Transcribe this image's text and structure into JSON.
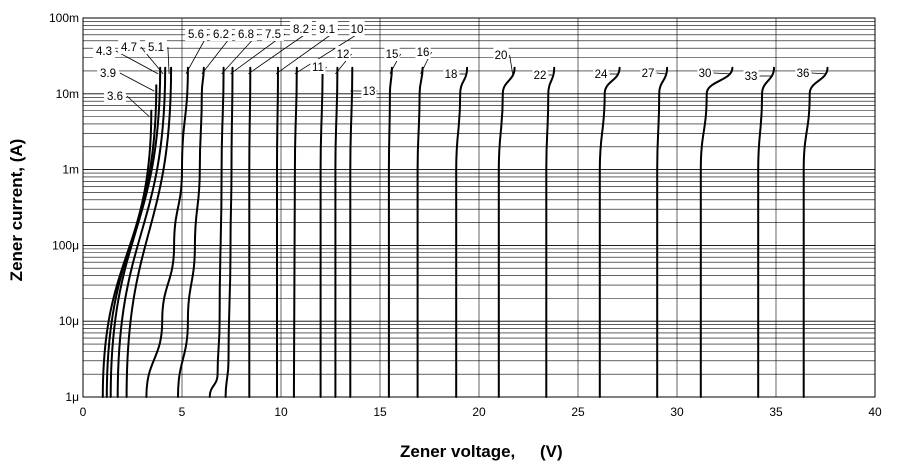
{
  "chart_data": {
    "type": "line",
    "title": "",
    "xlabel": "Zener voltage, (V)",
    "xlabel_main": "Zener voltage,",
    "xlabel_unit": "(V)",
    "ylabel": "Zener current, (A)",
    "x_scale": "linear",
    "y_scale": "log",
    "xlim": [
      0,
      40
    ],
    "ylim": [
      1e-06,
      0.1
    ],
    "grid": true,
    "legend": "none",
    "line_color": "#000000",
    "x_ticks": [
      {
        "value": 0,
        "label": "0"
      },
      {
        "value": 5,
        "label": "5"
      },
      {
        "value": 10,
        "label": "10"
      },
      {
        "value": 15,
        "label": "15"
      },
      {
        "value": 20,
        "label": "20"
      },
      {
        "value": 25,
        "label": "25"
      },
      {
        "value": 30,
        "label": "30"
      },
      {
        "value": 35,
        "label": "35"
      },
      {
        "value": 40,
        "label": "40"
      }
    ],
    "y_ticks": [
      {
        "value": 1e-06,
        "label": "1μ"
      },
      {
        "value": 1e-05,
        "label": "10μ"
      },
      {
        "value": 0.0001,
        "label": "100μ"
      },
      {
        "value": 0.001,
        "label": "1m"
      },
      {
        "value": 0.01,
        "label": "10m"
      },
      {
        "value": 0.1,
        "label": "100m"
      }
    ],
    "series": [
      {
        "name": "3.6",
        "x": [
          1.0,
          3.45
        ],
        "y": [
          1e-06,
          0.006
        ]
      },
      {
        "name": "3.9",
        "x": [
          1.2,
          3.7
        ],
        "y": [
          1e-06,
          0.013
        ]
      },
      {
        "name": "4.3",
        "x": [
          1.4,
          3.9
        ],
        "y": [
          1e-06,
          0.022
        ]
      },
      {
        "name": "4.7",
        "x": [
          1.75,
          4.15
        ],
        "y": [
          1e-06,
          0.022
        ]
      },
      {
        "name": "5.1",
        "x": [
          2.2,
          4.45
        ],
        "y": [
          1e-06,
          0.022
        ]
      },
      {
        "name": "5.6",
        "x": [
          3.2,
          4.0,
          4.6,
          5.0,
          5.3
        ],
        "y": [
          1e-06,
          1e-05,
          0.0001,
          0.001,
          0.022
        ]
      },
      {
        "name": "6.2",
        "x": [
          4.8,
          5.3,
          5.65,
          5.9,
          6.0,
          6.1
        ],
        "y": [
          1e-06,
          1e-05,
          0.0001,
          0.001,
          0.01,
          0.022
        ]
      },
      {
        "name": "6.8",
        "x": [
          6.4,
          6.8,
          6.9,
          7.0,
          7.1
        ],
        "y": [
          1e-06,
          2e-06,
          1e-05,
          0.001,
          0.022
        ]
      },
      {
        "name": "7.5",
        "x": [
          7.2,
          7.35,
          7.45,
          7.5,
          7.55
        ],
        "y": [
          1e-06,
          3e-06,
          0.0001,
          0.001,
          0.022
        ]
      },
      {
        "name": "8.2",
        "x": [
          8.4,
          8.4,
          8.45
        ],
        "y": [
          1e-06,
          0.001,
          0.022
        ]
      },
      {
        "name": "9.1",
        "x": [
          9.8,
          9.8,
          9.85
        ],
        "y": [
          1e-06,
          0.001,
          0.022
        ]
      },
      {
        "name": "10",
        "x": [
          10.65,
          10.7,
          10.8
        ],
        "y": [
          1e-06,
          0.001,
          0.022
        ]
      },
      {
        "name": "11",
        "x": [
          12.0,
          12.0,
          12.1
        ],
        "y": [
          1e-06,
          0.001,
          0.022
        ]
      },
      {
        "name": "12",
        "x": [
          12.75,
          12.75,
          12.85
        ],
        "y": [
          1e-06,
          0.001,
          0.022
        ]
      },
      {
        "name": "13",
        "x": [
          13.5,
          13.5,
          13.6
        ],
        "y": [
          1e-06,
          0.001,
          0.022
        ]
      },
      {
        "name": "15",
        "x": [
          15.45,
          15.45,
          15.5,
          15.6
        ],
        "y": [
          1e-06,
          0.001,
          0.01,
          0.022
        ]
      },
      {
        "name": "16",
        "x": [
          16.9,
          16.9,
          17.0,
          17.15
        ],
        "y": [
          1e-06,
          0.001,
          0.01,
          0.022
        ]
      },
      {
        "name": "18",
        "x": [
          18.85,
          18.85,
          19.05,
          19.4
        ],
        "y": [
          1e-06,
          0.001,
          0.01,
          0.022
        ]
      },
      {
        "name": "20",
        "x": [
          21.0,
          21.0,
          21.2,
          21.8
        ],
        "y": [
          1e-06,
          0.001,
          0.01,
          0.022
        ]
      },
      {
        "name": "22",
        "x": [
          23.4,
          23.4,
          23.5,
          23.8
        ],
        "y": [
          1e-06,
          0.001,
          0.01,
          0.022
        ]
      },
      {
        "name": "24",
        "x": [
          26.1,
          26.1,
          26.35,
          27.1
        ],
        "y": [
          1e-06,
          0.001,
          0.01,
          0.022
        ]
      },
      {
        "name": "27",
        "x": [
          29.0,
          29.0,
          29.1,
          29.5
        ],
        "y": [
          1e-06,
          0.001,
          0.01,
          0.022
        ]
      },
      {
        "name": "30",
        "x": [
          31.2,
          31.2,
          31.5,
          32.8
        ],
        "y": [
          1e-06,
          0.001,
          0.01,
          0.022
        ]
      },
      {
        "name": "33",
        "x": [
          34.1,
          34.1,
          34.3,
          34.9
        ],
        "y": [
          1e-06,
          0.001,
          0.01,
          0.022
        ]
      },
      {
        "name": "36",
        "x": [
          36.4,
          36.4,
          36.7,
          37.6
        ],
        "y": [
          1e-06,
          0.001,
          0.01,
          0.022
        ]
      }
    ]
  }
}
